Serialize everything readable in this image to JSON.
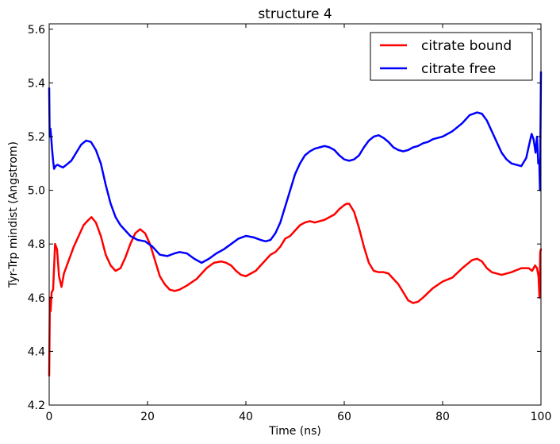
{
  "chart_data": {
    "type": "line",
    "title": "structure 4",
    "xlabel": "Time (ns)",
    "ylabel": "Tyr-Trp mindist (Angstrom)",
    "xlim": [
      0,
      100
    ],
    "ylim": [
      4.2,
      5.62
    ],
    "xticks": [
      0,
      20,
      40,
      60,
      80,
      100
    ],
    "xtick_labels": [
      "0",
      "20",
      "40",
      "60",
      "80",
      "100"
    ],
    "yticks": [
      4.2,
      4.4,
      4.6,
      4.8,
      5.0,
      5.2,
      5.4,
      5.6
    ],
    "ytick_labels": [
      "4.2",
      "4.4",
      "4.6",
      "4.8",
      "5.0",
      "5.2",
      "5.4",
      "5.6"
    ],
    "grid": false,
    "legend_position": "top-right",
    "series": [
      {
        "name": "citrate bound",
        "color": "#ff0000",
        "x": [
          0,
          0.15,
          0.3,
          0.5,
          0.8,
          1.2,
          1.6,
          2.0,
          2.5,
          3.0,
          4.0,
          5.0,
          6.0,
          7.0,
          8.0,
          8.6,
          9.5,
          10.5,
          11.5,
          12.5,
          13.5,
          14.5,
          15.5,
          16.5,
          17.5,
          18.5,
          19.5,
          20.5,
          21.5,
          22.5,
          23.5,
          24.5,
          25.5,
          26.5,
          28.0,
          30.0,
          32.0,
          33.5,
          35.0,
          36.0,
          37.0,
          38.0,
          39.0,
          40.0,
          41.0,
          42.0,
          43.0,
          44.0,
          45.0,
          46.0,
          47.0,
          48.0,
          49.0,
          50.0,
          51.0,
          52.0,
          53.0,
          54.0,
          55.0,
          56.0,
          57.0,
          58.0,
          59.0,
          60.0,
          60.5,
          61.0,
          62.0,
          63.0,
          64.0,
          65.0,
          66.0,
          67.0,
          68.0,
          69.0,
          70.0,
          71.0,
          72.0,
          73.0,
          74.0,
          75.0,
          76.0,
          78.0,
          80.0,
          82.0,
          84.0,
          86.0,
          87.0,
          88.0,
          89.0,
          90.0,
          92.0,
          94.0,
          96.0,
          97.5,
          98.2,
          98.8,
          99.2,
          99.5,
          99.7,
          99.85,
          100.0
        ],
        "y": [
          4.31,
          4.6,
          4.55,
          4.62,
          4.63,
          4.8,
          4.78,
          4.68,
          4.64,
          4.69,
          4.74,
          4.79,
          4.83,
          4.87,
          4.89,
          4.9,
          4.88,
          4.83,
          4.76,
          4.72,
          4.7,
          4.71,
          4.75,
          4.8,
          4.84,
          4.855,
          4.84,
          4.8,
          4.74,
          4.68,
          4.65,
          4.63,
          4.625,
          4.63,
          4.645,
          4.67,
          4.71,
          4.73,
          4.735,
          4.73,
          4.72,
          4.7,
          4.685,
          4.68,
          4.69,
          4.7,
          4.72,
          4.74,
          4.76,
          4.77,
          4.79,
          4.82,
          4.83,
          4.85,
          4.87,
          4.88,
          4.885,
          4.88,
          4.885,
          4.89,
          4.9,
          4.91,
          4.93,
          4.945,
          4.95,
          4.95,
          4.92,
          4.86,
          4.79,
          4.73,
          4.7,
          4.695,
          4.695,
          4.69,
          4.67,
          4.65,
          4.62,
          4.59,
          4.58,
          4.585,
          4.6,
          4.635,
          4.66,
          4.675,
          4.71,
          4.74,
          4.745,
          4.735,
          4.71,
          4.695,
          4.685,
          4.695,
          4.71,
          4.71,
          4.7,
          4.72,
          4.71,
          4.68,
          4.6,
          4.77,
          4.78
        ]
      },
      {
        "name": "citrate free",
        "color": "#0000ff",
        "x": [
          0,
          0.1,
          0.25,
          0.4,
          0.6,
          0.8,
          1.0,
          1.3,
          1.7,
          2.2,
          2.8,
          3.5,
          4.5,
          5.5,
          6.5,
          7.5,
          8.5,
          9.5,
          10.5,
          11.5,
          12.5,
          13.5,
          14.5,
          15.5,
          16.5,
          18.0,
          19.5,
          21.0,
          22.5,
          24.0,
          25.5,
          26.5,
          28.0,
          29.5,
          31.0,
          32.5,
          34.0,
          35.5,
          37.0,
          38.5,
          40.0,
          41.5,
          43.0,
          44.0,
          45.0,
          46.0,
          47.0,
          48.0,
          49.0,
          50.0,
          51.0,
          52.0,
          53.0,
          54.0,
          55.0,
          56.0,
          57.0,
          58.0,
          59.0,
          60.0,
          61.0,
          62.0,
          63.0,
          64.0,
          65.0,
          66.0,
          67.0,
          68.0,
          69.0,
          70.0,
          71.0,
          72.0,
          73.0,
          74.0,
          75.0,
          76.0,
          77.0,
          78.0,
          80.0,
          82.0,
          84.0,
          85.5,
          87.0,
          88.0,
          89.0,
          90.0,
          91.0,
          92.0,
          93.0,
          94.0,
          95.0,
          96.0,
          97.0,
          97.6,
          98.1,
          98.5,
          98.9,
          99.2,
          99.45,
          99.65,
          99.8,
          100.0
        ],
        "y": [
          5.38,
          5.2,
          5.23,
          5.2,
          5.15,
          5.11,
          5.08,
          5.09,
          5.095,
          5.09,
          5.085,
          5.095,
          5.11,
          5.14,
          5.17,
          5.185,
          5.18,
          5.15,
          5.1,
          5.02,
          4.95,
          4.9,
          4.87,
          4.85,
          4.83,
          4.815,
          4.81,
          4.79,
          4.76,
          4.755,
          4.765,
          4.77,
          4.765,
          4.745,
          4.73,
          4.745,
          4.765,
          4.78,
          4.8,
          4.82,
          4.83,
          4.825,
          4.815,
          4.81,
          4.815,
          4.84,
          4.88,
          4.94,
          5.0,
          5.06,
          5.1,
          5.13,
          5.145,
          5.155,
          5.16,
          5.165,
          5.16,
          5.15,
          5.13,
          5.115,
          5.11,
          5.115,
          5.13,
          5.16,
          5.185,
          5.2,
          5.205,
          5.195,
          5.18,
          5.16,
          5.15,
          5.145,
          5.15,
          5.16,
          5.165,
          5.175,
          5.18,
          5.19,
          5.2,
          5.22,
          5.25,
          5.28,
          5.29,
          5.285,
          5.26,
          5.22,
          5.18,
          5.14,
          5.115,
          5.1,
          5.095,
          5.09,
          5.12,
          5.17,
          5.21,
          5.19,
          5.14,
          5.2,
          5.1,
          5.11,
          5.0,
          5.44
        ]
      }
    ]
  }
}
